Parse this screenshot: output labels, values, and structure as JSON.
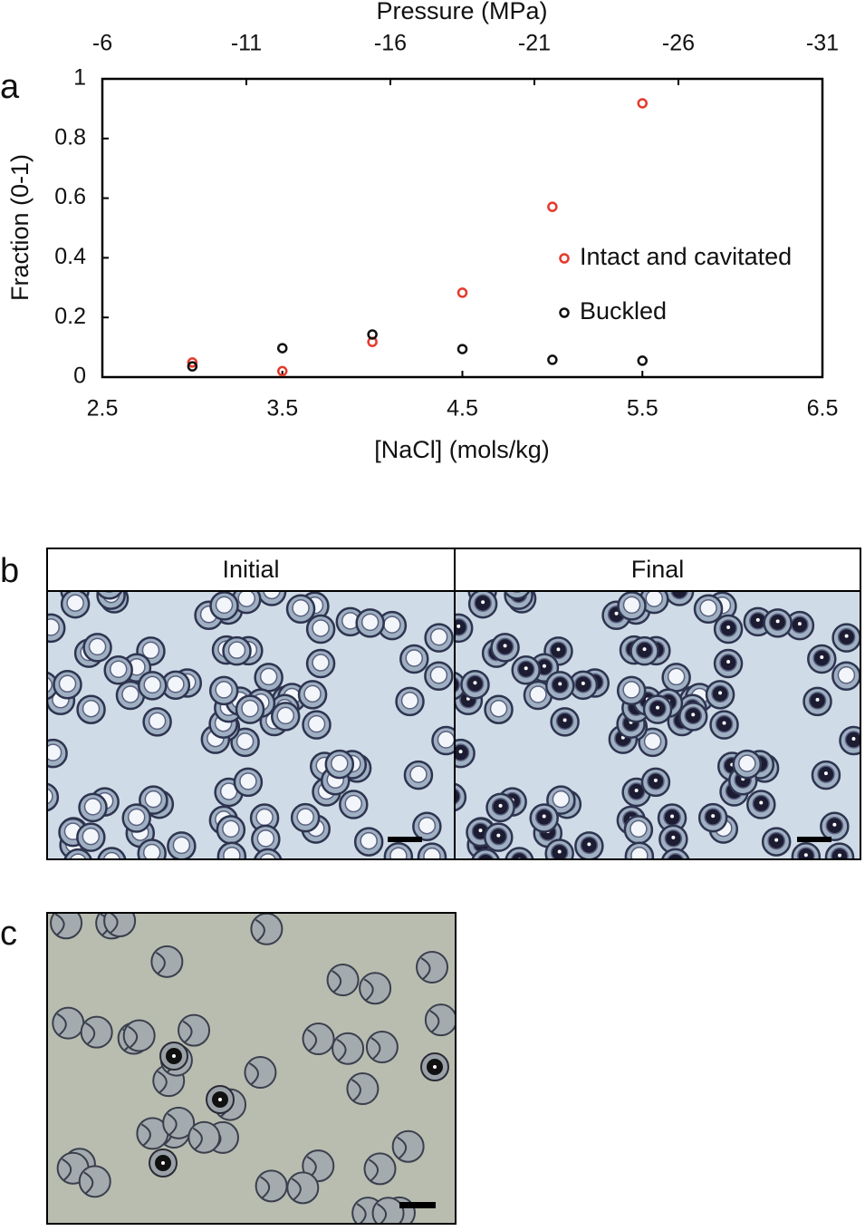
{
  "chart_data": {
    "type": "scatter",
    "panel_label": "a",
    "x_label": "[NaCl] (mols/kg)",
    "y_label": "Fraction (0-1)",
    "x2_label": "Pressure (MPa)",
    "x": [
      3,
      3.5,
      4,
      4.5,
      5,
      5.5
    ],
    "series": [
      {
        "name": "Intact and cavitated",
        "color": "#e5392b",
        "values": [
          0.049,
          0.02,
          0.118,
          0.283,
          0.571,
          0.918
        ]
      },
      {
        "name": "Buckled",
        "color": "#111111",
        "values": [
          0.036,
          0.097,
          0.143,
          0.094,
          0.058,
          0.055
        ]
      }
    ],
    "xlim": [
      2.5,
      6.5
    ],
    "xticks": [
      2.5,
      3.5,
      4.5,
      5.5,
      6.5
    ],
    "ylim": [
      0,
      1
    ],
    "yticks": [
      0,
      0.2,
      0.4,
      0.6,
      0.8,
      1
    ],
    "x2lim": [
      -6,
      -31
    ],
    "x2ticks": [
      -6,
      -11,
      -16,
      -21,
      -26,
      -31
    ],
    "legend": "right"
  },
  "panel_b": {
    "label": "b",
    "headers": [
      "Initial",
      "Final"
    ]
  },
  "panel_c": {
    "label": "c"
  }
}
